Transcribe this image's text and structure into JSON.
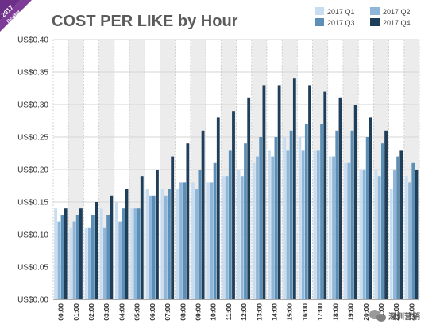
{
  "ribbon": {
    "line1": "2017",
    "line2": "Review"
  },
  "watermark": {
    "text": "深圳营销",
    "icon": "wechat-icon"
  },
  "chart_data": {
    "type": "bar",
    "title": "COST PER LIKE by Hour",
    "xlabel": "",
    "ylabel": "",
    "ylim": [
      0,
      0.4
    ],
    "yticks": [
      "US$0.00",
      "US$0.05",
      "US$0.10",
      "US$0.15",
      "US$0.20",
      "US$0.25",
      "US$0.30",
      "US$0.35",
      "US$0.40"
    ],
    "grid": true,
    "legend_position": "top-right",
    "categories": [
      "00:00",
      "01:00",
      "02:00",
      "03:00",
      "04:00",
      "05:00",
      "06:00",
      "07:00",
      "08:00",
      "09:00",
      "10:00",
      "11:00",
      "12:00",
      "13:00",
      "14:00",
      "15:00",
      "16:00",
      "17:00",
      "18:00",
      "19:00",
      "20:00",
      "21:00",
      "22:00",
      "23:00"
    ],
    "series": [
      {
        "name": "2017 Q1",
        "color": "#c8def0",
        "values": [
          0.14,
          0.11,
          0.11,
          0.14,
          0.15,
          0.14,
          0.17,
          0.17,
          0.17,
          0.18,
          0.18,
          0.19,
          0.2,
          0.21,
          0.23,
          0.25,
          0.25,
          0.23,
          0.22,
          0.21,
          0.2,
          0.2,
          0.17,
          0.19
        ]
      },
      {
        "name": "2017 Q2",
        "color": "#8fb6d9",
        "values": [
          0.12,
          0.12,
          0.11,
          0.11,
          0.12,
          0.14,
          0.16,
          0.16,
          0.18,
          0.17,
          0.18,
          0.19,
          0.19,
          0.22,
          0.22,
          0.23,
          0.23,
          0.23,
          0.22,
          0.21,
          0.2,
          0.19,
          0.2,
          0.18
        ]
      },
      {
        "name": "2017 Q3",
        "color": "#5b8fb5",
        "values": [
          0.13,
          0.13,
          0.13,
          0.13,
          0.14,
          0.14,
          0.16,
          0.17,
          0.18,
          0.2,
          0.21,
          0.23,
          0.24,
          0.25,
          0.25,
          0.26,
          0.27,
          0.27,
          0.26,
          0.26,
          0.25,
          0.24,
          0.22,
          0.21
        ]
      },
      {
        "name": "2017 Q4",
        "color": "#1f3e5a",
        "values": [
          0.14,
          0.14,
          0.15,
          0.16,
          0.17,
          0.19,
          0.2,
          0.22,
          0.24,
          0.26,
          0.28,
          0.29,
          0.31,
          0.33,
          0.33,
          0.34,
          0.33,
          0.32,
          0.31,
          0.3,
          0.28,
          0.26,
          0.23,
          0.2
        ]
      }
    ]
  }
}
